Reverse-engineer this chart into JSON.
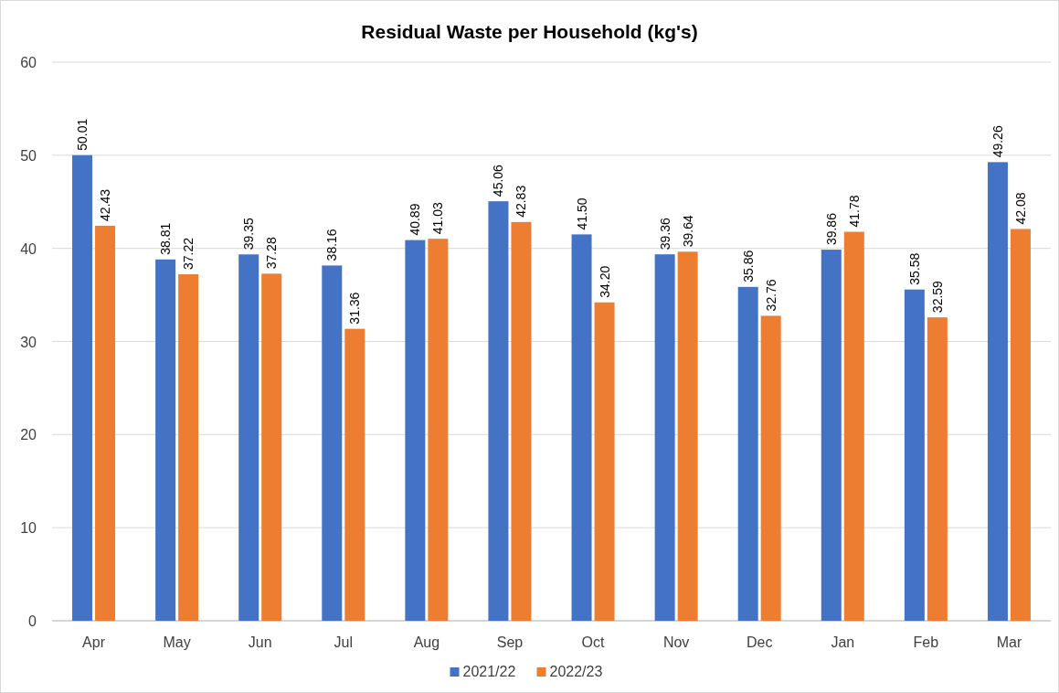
{
  "chart_data": {
    "type": "bar",
    "title": "Residual Waste per Household (kg's)",
    "categories": [
      "Apr",
      "May",
      "Jun",
      "Jul",
      "Aug",
      "Sep",
      "Oct",
      "Nov",
      "Dec",
      "Jan",
      "Feb",
      "Mar"
    ],
    "series": [
      {
        "name": "2021/22",
        "color": "#4472c4",
        "values": [
          50.01,
          38.81,
          39.35,
          38.16,
          40.89,
          45.06,
          41.5,
          39.36,
          35.86,
          39.86,
          35.58,
          49.26
        ],
        "value_labels": [
          "50.01",
          "38.81",
          "39.35",
          "38.16",
          "40.89",
          "45.06",
          "41.50",
          "39.36",
          "35.86",
          "39.86",
          "35.58",
          "49.26"
        ]
      },
      {
        "name": "2022/23",
        "color": "#ed7d31",
        "values": [
          42.43,
          37.22,
          37.28,
          31.36,
          41.03,
          42.83,
          34.2,
          39.64,
          32.76,
          41.78,
          32.59,
          42.08
        ],
        "value_labels": [
          "42.43",
          "37.22",
          "37.28",
          "31.36",
          "41.03",
          "42.83",
          "34.20",
          "39.64",
          "32.76",
          "41.78",
          "32.59",
          "42.08"
        ]
      }
    ],
    "ylim": [
      0,
      60
    ],
    "yticks": [
      0,
      10,
      20,
      30,
      40,
      50,
      60
    ],
    "grid": "y",
    "legend": "bottom"
  }
}
